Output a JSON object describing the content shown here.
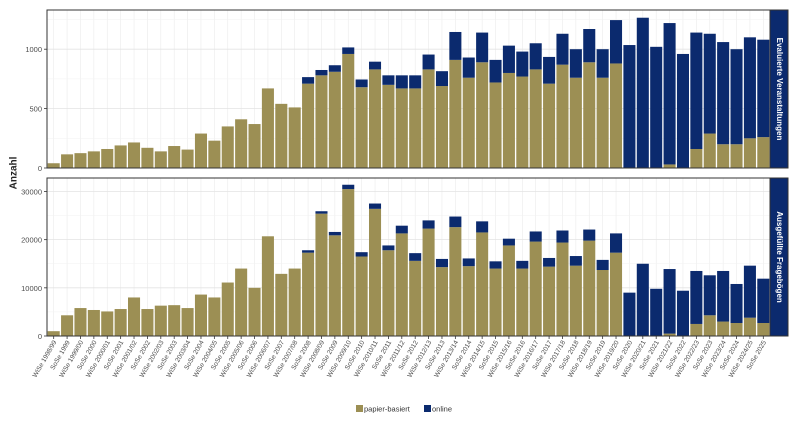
{
  "chart_data": [
    {
      "type": "bar",
      "stacked": true,
      "facet_label": "Evaluierte Veranstaltungen",
      "ylabel": "Anzahl",
      "ylim": [
        0,
        1330
      ],
      "yticks": [
        0,
        500,
        1000
      ],
      "categories": [
        "WiSe 1998/99",
        "SoSe 1999",
        "WiSe 1999/00",
        "SoSe 2000",
        "WiSe 2000/01",
        "SoSe 2001",
        "WiSe 2001/02",
        "SoSe 2002",
        "WiSe 2002/03",
        "SoSe 2003",
        "WiSe 2003/04",
        "SoSe 2004",
        "WiSe 2004/05",
        "SoSe 2005",
        "WiSe 2005/06",
        "SoSe 2006",
        "WiSe 2006/07",
        "SoSe 2007",
        "WiSe 2007/08",
        "SoSe 2008",
        "WiSe 2008/09",
        "SoSe 2009",
        "WiSe 2009/10",
        "SoSe 2010",
        "WiSe 2010/11",
        "SoSe 2011",
        "WiSe 2011/12",
        "SoSe 2012",
        "WiSe 2012/13",
        "SoSe 2013",
        "WiSe 2013/14",
        "SoSe 2014",
        "WiSe 2014/15",
        "SoSe 2015",
        "WiSe 2015/16",
        "SoSe 2016",
        "WiSe 2016/17",
        "SoSe 2017",
        "WiSe 2017/18",
        "SoSe 2018",
        "WiSe 2018/19",
        "SoSe 2019",
        "WiSe 2019/20",
        "SoSe 2020",
        "WiSe 2020/21",
        "SoSe 2021",
        "WiSe 2021/22",
        "SoSe 2022",
        "WiSe 2022/23",
        "SoSe 2023",
        "WiSe 2023/24",
        "SoSe 2024",
        "WiSe 2024/25",
        "SoSe 2025"
      ],
      "series": [
        {
          "name": "papier-basiert",
          "color": "#9c8f54",
          "values": [
            40,
            115,
            125,
            140,
            160,
            190,
            215,
            170,
            140,
            185,
            155,
            290,
            230,
            350,
            410,
            370,
            670,
            540,
            510,
            710,
            780,
            810,
            960,
            680,
            830,
            700,
            670,
            670,
            830,
            690,
            910,
            760,
            890,
            720,
            800,
            770,
            830,
            710,
            870,
            760,
            890,
            760,
            880,
            0,
            0,
            0,
            30,
            0,
            160,
            290,
            200,
            200,
            250,
            260
          ]
        },
        {
          "name": "online",
          "color": "#0b2a6e",
          "values": [
            0,
            0,
            0,
            0,
            0,
            0,
            0,
            0,
            0,
            0,
            0,
            0,
            0,
            0,
            0,
            0,
            0,
            0,
            0,
            55,
            45,
            55,
            55,
            65,
            65,
            80,
            110,
            110,
            125,
            125,
            235,
            170,
            250,
            190,
            230,
            210,
            220,
            225,
            260,
            240,
            280,
            240,
            365,
            1035,
            1265,
            1020,
            1190,
            960,
            980,
            840,
            860,
            800,
            850,
            820
          ]
        }
      ]
    },
    {
      "type": "bar",
      "stacked": true,
      "facet_label": "Ausgefüllte Fragebögen",
      "ylabel": "Anzahl",
      "ylim": [
        0,
        32800
      ],
      "yticks": [
        0,
        10000,
        20000,
        30000
      ],
      "categories": [
        "WiSe 1998/99",
        "SoSe 1999",
        "WiSe 1999/00",
        "SoSe 2000",
        "WiSe 2000/01",
        "SoSe 2001",
        "WiSe 2001/02",
        "SoSe 2002",
        "WiSe 2002/03",
        "SoSe 2003",
        "WiSe 2003/04",
        "SoSe 2004",
        "WiSe 2004/05",
        "SoSe 2005",
        "WiSe 2005/06",
        "SoSe 2006",
        "WiSe 2006/07",
        "SoSe 2007",
        "WiSe 2007/08",
        "SoSe 2008",
        "WiSe 2008/09",
        "SoSe 2009",
        "WiSe 2009/10",
        "SoSe 2010",
        "WiSe 2010/11",
        "SoSe 2011",
        "WiSe 2011/12",
        "SoSe 2012",
        "WiSe 2012/13",
        "SoSe 2013",
        "WiSe 2013/14",
        "SoSe 2014",
        "WiSe 2014/15",
        "SoSe 2015",
        "WiSe 2015/16",
        "SoSe 2016",
        "WiSe 2016/17",
        "SoSe 2017",
        "WiSe 2017/18",
        "SoSe 2018",
        "WiSe 2018/19",
        "SoSe 2019",
        "WiSe 2019/20",
        "SoSe 2020",
        "WiSe 2020/21",
        "SoSe 2021",
        "WiSe 2021/22",
        "SoSe 2022",
        "WiSe 2022/23",
        "SoSe 2023",
        "WiSe 2023/24",
        "SoSe 2024",
        "WiSe 2024/25",
        "SoSe 2025"
      ],
      "series": [
        {
          "name": "papier-basiert",
          "color": "#9c8f54",
          "values": [
            1000,
            4300,
            5800,
            5400,
            5100,
            5600,
            8000,
            5600,
            6300,
            6400,
            5800,
            8600,
            8000,
            11100,
            14000,
            10000,
            20700,
            12900,
            14000,
            17300,
            25400,
            20900,
            30500,
            16500,
            26400,
            17800,
            21300,
            15600,
            22300,
            14300,
            22600,
            14500,
            21500,
            14000,
            18800,
            14000,
            19600,
            14400,
            19400,
            14600,
            19800,
            13700,
            17300,
            0,
            0,
            0,
            500,
            0,
            2500,
            4300,
            3000,
            2700,
            3800,
            2700
          ]
        },
        {
          "name": "online",
          "color": "#0b2a6e",
          "values": [
            0,
            0,
            0,
            0,
            0,
            0,
            0,
            0,
            0,
            0,
            0,
            0,
            0,
            0,
            0,
            0,
            0,
            0,
            0,
            500,
            500,
            700,
            900,
            900,
            1100,
            1000,
            1600,
            1600,
            1700,
            1700,
            2200,
            1600,
            2300,
            1500,
            1400,
            1600,
            2100,
            1800,
            2500,
            2000,
            2300,
            2100,
            4000,
            9000,
            15000,
            9800,
            13400,
            9400,
            11000,
            8300,
            10500,
            8100,
            10800,
            9200
          ]
        }
      ]
    }
  ],
  "legend": [
    {
      "label": "papier-basiert",
      "color": "#9c8f54"
    },
    {
      "label": "online",
      "color": "#0b2a6e"
    }
  ]
}
